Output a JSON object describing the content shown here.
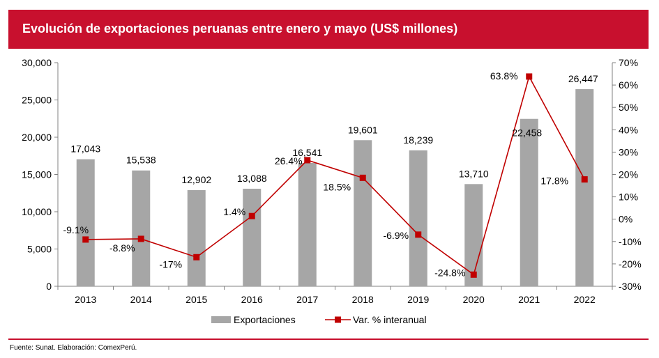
{
  "title": "Evolución de exportaciones peruanas entre enero y mayo (US$ millones)",
  "source": "Fuente: Sunat. Elaboración: ComexPerú.",
  "colors": {
    "title_bg": "#c8102e",
    "bar": "#a6a6a6",
    "line": "#c00000",
    "rule": "#c8102e"
  },
  "chart_data": {
    "type": "bar",
    "categories": [
      "2013",
      "2014",
      "2015",
      "2016",
      "2017",
      "2018",
      "2019",
      "2020",
      "2021",
      "2022"
    ],
    "series": [
      {
        "name": "Exportaciones",
        "type": "bar",
        "axis": "left",
        "values": [
          17043,
          15538,
          12902,
          13088,
          16541,
          19601,
          18239,
          13710,
          22458,
          26447
        ],
        "labels": [
          "17,043",
          "15,538",
          "12,902",
          "13,088",
          "16,541",
          "19,601",
          "18,239",
          "13,710",
          "22,458",
          "26,447"
        ]
      },
      {
        "name": "Var. % interanual",
        "type": "line",
        "axis": "right",
        "values": [
          -9.1,
          -8.8,
          -17,
          1.4,
          26.4,
          18.5,
          -6.9,
          -24.8,
          63.8,
          17.8
        ],
        "labels": [
          "-9.1%",
          "-8.8%",
          "-17%",
          "1.4%",
          "26.4%",
          "18.5%",
          "-6.9%",
          "-24.8%",
          "63.8%",
          "17.8%"
        ]
      }
    ],
    "y_left": {
      "min": 0,
      "max": 30000,
      "ticks": [
        0,
        5000,
        10000,
        15000,
        20000,
        25000,
        30000
      ],
      "tick_labels": [
        "0",
        "5,000",
        "10,000",
        "15,000",
        "20,000",
        "25,000",
        "30,000"
      ]
    },
    "y_right": {
      "min": -30,
      "max": 70,
      "ticks": [
        -30,
        -20,
        -10,
        0,
        10,
        20,
        30,
        40,
        50,
        60,
        70
      ],
      "tick_labels": [
        "-30%",
        "-20%",
        "-10%",
        "0%",
        "10%",
        "20%",
        "30%",
        "40%",
        "50%",
        "60%",
        "70%"
      ]
    },
    "grid": false,
    "legend": "bottom"
  }
}
